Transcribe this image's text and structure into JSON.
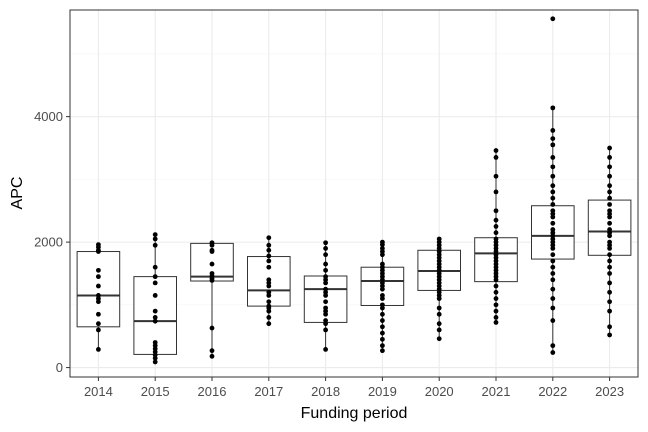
{
  "chart_data": {
    "type": "box",
    "xlabel": "Funding period",
    "ylabel": "APC",
    "ylim": [
      -150,
      5700
    ],
    "y_ticks": [
      0,
      2000,
      4000
    ],
    "grid": true,
    "colors": {
      "panel_border": "#333333",
      "grid_major": "#ebebeb",
      "grid_minor": "#f5f5f5",
      "box": "#333333",
      "point": "#000000"
    },
    "groups": [
      {
        "category": "2014",
        "q1": 650,
        "median": 1150,
        "q3": 1850,
        "whisker_low": 290,
        "whisker_high": 1960,
        "points": [
          1960,
          1920,
          1870,
          1850,
          1550,
          1450,
          1300,
          1150,
          1100,
          1050,
          850,
          700,
          600,
          290
        ]
      },
      {
        "category": "2015",
        "q1": 210,
        "median": 740,
        "q3": 1450,
        "whisker_low": 90,
        "whisker_high": 2120,
        "points": [
          2120,
          2050,
          1950,
          1600,
          1450,
          1350,
          1150,
          900,
          800,
          740,
          400,
          350,
          300,
          250,
          200,
          150,
          90
        ]
      },
      {
        "category": "2016",
        "q1": 1380,
        "median": 1450,
        "q3": 1980,
        "whisker_low": 180,
        "whisker_high": 1990,
        "points": [
          1990,
          1950,
          1870,
          1850,
          1650,
          1500,
          1460,
          1420,
          1390,
          630,
          270,
          180
        ]
      },
      {
        "category": "2017",
        "q1": 980,
        "median": 1230,
        "q3": 1770,
        "whisker_low": 690,
        "whisker_high": 2070,
        "points": [
          2070,
          1950,
          1870,
          1780,
          1700,
          1600,
          1400,
          1350,
          1300,
          1200,
          1150,
          1050,
          980,
          950,
          900,
          800,
          700
        ]
      },
      {
        "category": "2018",
        "q1": 720,
        "median": 1250,
        "q3": 1460,
        "whisker_low": 290,
        "whisker_high": 1990,
        "points": [
          1990,
          1900,
          1800,
          1650,
          1550,
          1450,
          1400,
          1350,
          1250,
          1200,
          1150,
          1050,
          950,
          900,
          850,
          750,
          700,
          600,
          290
        ]
      },
      {
        "category": "2019",
        "q1": 990,
        "median": 1380,
        "q3": 1600,
        "whisker_low": 270,
        "whisker_high": 2000,
        "points": [
          2000,
          1960,
          1900,
          1850,
          1800,
          1650,
          1600,
          1550,
          1500,
          1450,
          1400,
          1350,
          1300,
          1250,
          1150,
          1100,
          1000,
          950,
          850,
          750,
          650,
          550,
          450,
          350,
          270
        ]
      },
      {
        "category": "2020",
        "q1": 1230,
        "median": 1540,
        "q3": 1870,
        "whisker_low": 460,
        "whisker_high": 2050,
        "points": [
          2050,
          2000,
          1950,
          1900,
          1850,
          1800,
          1750,
          1700,
          1650,
          1600,
          1550,
          1500,
          1450,
          1400,
          1350,
          1300,
          1250,
          1200,
          1150,
          1100,
          950,
          850,
          700,
          600,
          460
        ]
      },
      {
        "category": "2021",
        "q1": 1370,
        "median": 1820,
        "q3": 2070,
        "whisker_low": 720,
        "whisker_high": 3460,
        "points": [
          3460,
          3350,
          3050,
          2800,
          2500,
          2350,
          2250,
          2150,
          2050,
          2000,
          1950,
          1900,
          1850,
          1800,
          1750,
          1700,
          1650,
          1600,
          1550,
          1500,
          1450,
          1400,
          1300,
          1200,
          1100,
          1000,
          900,
          800,
          720
        ]
      },
      {
        "category": "2022",
        "q1": 1730,
        "median": 2100,
        "q3": 2580,
        "whisker_low": 240,
        "whisker_high": 4140,
        "points": [
          5560,
          4140,
          3780,
          3650,
          3550,
          3350,
          3200,
          3050,
          2900,
          2800,
          2700,
          2600,
          2500,
          2450,
          2400,
          2300,
          2200,
          2150,
          2100,
          2050,
          2000,
          1950,
          1900,
          1800,
          1700,
          1600,
          1500,
          1400,
          1250,
          1100,
          950,
          750,
          350,
          240
        ]
      },
      {
        "category": "2023",
        "q1": 1790,
        "median": 2170,
        "q3": 2670,
        "whisker_low": 520,
        "whisker_high": 3500,
        "points": [
          3500,
          3350,
          3200,
          3050,
          2900,
          2800,
          2700,
          2600,
          2500,
          2450,
          2400,
          2300,
          2200,
          2150,
          2100,
          2000,
          1950,
          1900,
          1800,
          1700,
          1600,
          1500,
          1350,
          1200,
          1050,
          900,
          650,
          520
        ]
      }
    ]
  }
}
